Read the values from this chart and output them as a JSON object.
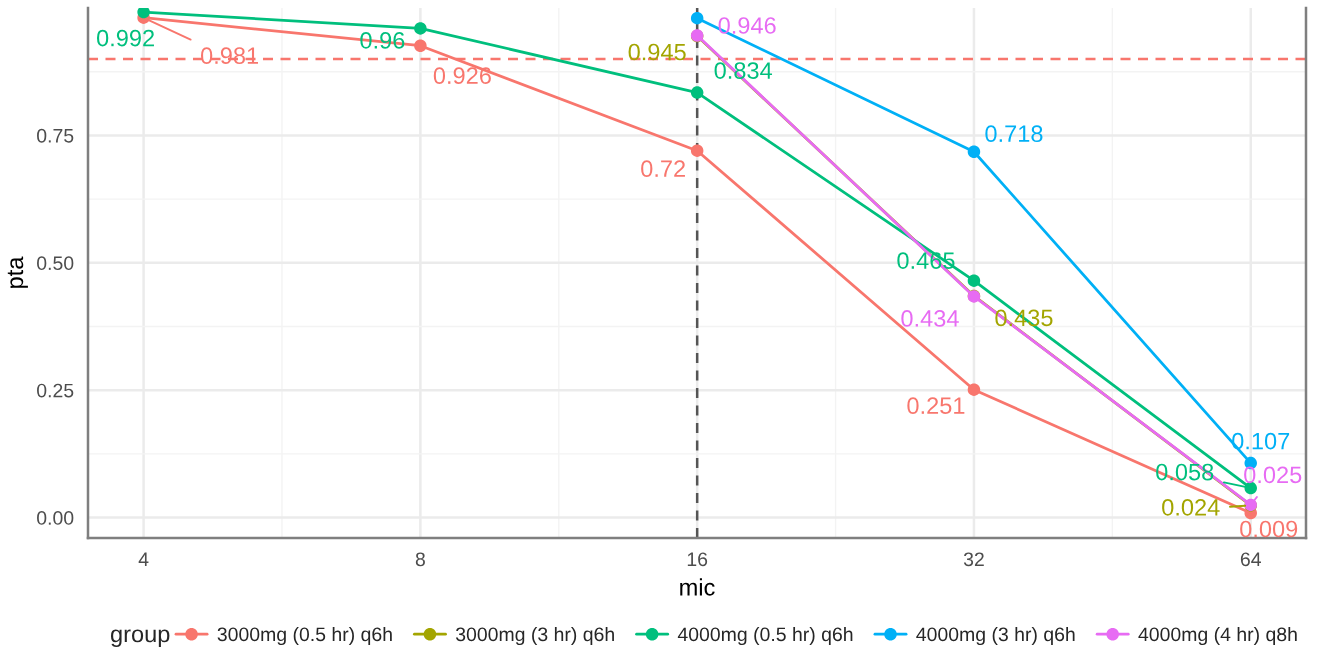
{
  "chart_data": {
    "type": "line",
    "xlabel": "mic",
    "ylabel": "pta",
    "legend_title": "group",
    "log": "x",
    "x": [
      4,
      8,
      16,
      32,
      64
    ],
    "xlim": [
      3.48,
      73.5
    ],
    "xticks": [
      4,
      8,
      16,
      32,
      64
    ],
    "ylim": [
      -0.04,
      1.0
    ],
    "yticks": [
      {
        "value": 0,
        "label": "0.00"
      },
      0.25,
      {
        "value": 0.5,
        "label": "0.50"
      },
      0.75
    ],
    "grid": true,
    "legend": "bottom",
    "marker": "circle",
    "line_style": "solid",
    "ref_lines": [
      {
        "axis": "y",
        "value": 0.9,
        "color": "#f8766d",
        "line_style": "dashed"
      },
      {
        "axis": "x",
        "value": 16,
        "color": "#555555",
        "line_style": "dashed"
      }
    ],
    "series": [
      {
        "name": "3000mg (0.5 hr) q6h",
        "color": "#f8766d",
        "values": [
          0.981,
          0.926,
          0.72,
          0.251,
          0.009
        ],
        "value_labels": [
          "0.981",
          "0.926",
          "0.72",
          "0.251",
          "0.009"
        ]
      },
      {
        "name": "3000mg (3 hr) q6h",
        "color": "#a3a500",
        "values": [
          null,
          null,
          0.945,
          0.435,
          0.024
        ],
        "value_labels": [
          null,
          null,
          "0.945",
          "0.435",
          "0.024"
        ]
      },
      {
        "name": "4000mg (0.5 hr) q6h",
        "color": "#00bf7d",
        "values": [
          0.992,
          0.96,
          0.834,
          0.465,
          0.058
        ],
        "value_labels": [
          "0.992",
          "0.96",
          "0.834",
          "0.465",
          "0.058"
        ]
      },
      {
        "name": "4000mg (3 hr) q6h",
        "color": "#00b0f6",
        "values": [
          null,
          null,
          0.98,
          0.718,
          0.107
        ],
        "value_labels": [
          null,
          null,
          null,
          "0.718",
          "0.107"
        ]
      },
      {
        "name": "4000mg (4 hr) q8h",
        "color": "#e76bf3",
        "values": [
          null,
          null,
          0.946,
          0.434,
          0.025
        ],
        "value_labels": [
          null,
          null,
          "0.946",
          "0.434",
          "0.025"
        ]
      }
    ]
  }
}
